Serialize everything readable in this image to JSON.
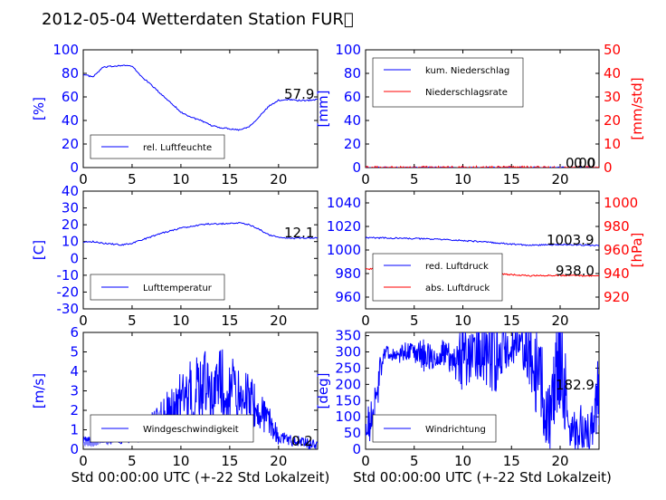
{
  "title": "2012-05-04 Wetterdaten Station FUR\u0000",
  "colors": {
    "primary": "#0000ff",
    "secondary": "#ff0000",
    "light": "#8080ff"
  },
  "chart_data": [
    {
      "type": "line",
      "xlabel": "",
      "ylabel": "[%]",
      "xlim": [
        0,
        24
      ],
      "ylim": [
        0,
        100
      ],
      "x_ticks": [
        0,
        5,
        10,
        15,
        20
      ],
      "y_ticks": [
        0,
        20,
        40,
        60,
        80,
        100
      ],
      "annotation": "57.9",
      "series": [
        {
          "name": "rel. Luftfeuchte",
          "color": "#0000ff",
          "x": [
            0,
            1,
            2,
            3,
            4,
            5,
            6,
            7,
            8,
            9,
            10,
            11,
            12,
            13,
            14,
            15,
            16,
            17,
            18,
            19,
            20,
            21,
            22,
            23,
            24
          ],
          "values": [
            79,
            77,
            85,
            86,
            87,
            86,
            77,
            70,
            62,
            55,
            47,
            43,
            40,
            36,
            34,
            33,
            32,
            35,
            43,
            52,
            57,
            58,
            57,
            57,
            58
          ]
        }
      ],
      "legend_position": "lower-left"
    },
    {
      "type": "line",
      "xlabel": "",
      "ylabel": "[mm]",
      "ylabel2": "[mm/std]",
      "xlim": [
        0,
        24
      ],
      "ylim": [
        0,
        100
      ],
      "ylim2": [
        0,
        50
      ],
      "x_ticks": [
        0,
        5,
        10,
        15,
        20
      ],
      "y_ticks": [
        0,
        20,
        40,
        60,
        80,
        100
      ],
      "y2_ticks": [
        0,
        10,
        20,
        30,
        40,
        50
      ],
      "annotation": "0.00",
      "annotation2": "0.0",
      "series": [
        {
          "name": "kum. Niederschlag",
          "color": "#0000ff",
          "axis": "left",
          "x": [
            0,
            24
          ],
          "values": [
            0,
            0
          ]
        },
        {
          "name": "Niederschlagsrate",
          "color": "#ff0000",
          "axis": "right",
          "x": [
            0,
            24
          ],
          "values": [
            0,
            0
          ]
        }
      ],
      "legend_position": "upper-left"
    },
    {
      "type": "line",
      "xlabel": "",
      "ylabel": "[C]",
      "xlim": [
        0,
        24
      ],
      "ylim": [
        -30,
        40
      ],
      "x_ticks": [
        0,
        5,
        10,
        15,
        20
      ],
      "y_ticks": [
        -30,
        -20,
        -10,
        0,
        10,
        20,
        30,
        40
      ],
      "annotation": "12.1",
      "series": [
        {
          "name": "Lufttemperatur",
          "color": "#0000ff",
          "x": [
            0,
            1,
            2,
            3,
            4,
            5,
            6,
            7,
            8,
            9,
            10,
            11,
            12,
            13,
            14,
            15,
            16,
            17,
            18,
            19,
            20,
            21,
            22,
            23,
            24
          ],
          "values": [
            10,
            10,
            9,
            8.5,
            8,
            9,
            11,
            13,
            15,
            16.5,
            18,
            19,
            20,
            20.5,
            20.5,
            21,
            21,
            20,
            17.5,
            14,
            12.5,
            12,
            12,
            12.1,
            12.1
          ]
        }
      ],
      "legend_position": "lower-left"
    },
    {
      "type": "line",
      "xlabel": "",
      "ylabel": "",
      "ylabel2": "[hPa]",
      "xlim": [
        0,
        24
      ],
      "ylim": [
        950,
        1050
      ],
      "ylim2": [
        910,
        1010
      ],
      "x_ticks": [
        0,
        5,
        10,
        15,
        20
      ],
      "y_ticks": [
        960,
        980,
        1000,
        1020,
        1040
      ],
      "y2_ticks": [
        920,
        940,
        960,
        980,
        1000
      ],
      "annotation": "1003.9",
      "annotation2": "938.0",
      "series": [
        {
          "name": "red. Luftdruck",
          "color": "#0000ff",
          "axis": "left",
          "x": [
            0,
            3,
            6,
            9,
            12,
            15,
            17,
            19,
            21,
            24
          ],
          "values": [
            1010.5,
            1010,
            1009.5,
            1008.5,
            1007,
            1005,
            1004,
            1004.5,
            1004.5,
            1003.9
          ]
        },
        {
          "name": "abs. Luftdruck",
          "color": "#ff0000",
          "axis": "right",
          "x": [
            0,
            3,
            6,
            9,
            12,
            15,
            17,
            19,
            21,
            24
          ],
          "values": [
            944,
            943.5,
            943,
            942,
            940.5,
            939,
            938.2,
            938.5,
            938.3,
            938.0
          ]
        }
      ],
      "legend_position": "lower-left"
    },
    {
      "type": "line",
      "xlabel": "Std 00:00:00 UTC (+-22 Std Lokalzeit)",
      "ylabel": "[m/s]",
      "xlim": [
        0,
        24
      ],
      "ylim": [
        0,
        6
      ],
      "x_ticks": [
        0,
        5,
        10,
        15,
        20
      ],
      "y_ticks": [
        0,
        1,
        2,
        3,
        4,
        5,
        6
      ],
      "annotation": "0.2",
      "series": [
        {
          "name": "Windgeschwindigkeit",
          "color": "#0000ff",
          "x": [
            0,
            1,
            2,
            3,
            4,
            5,
            6,
            7,
            8,
            9,
            10,
            11,
            12,
            13,
            14,
            15,
            16,
            17,
            18,
            19,
            20,
            21,
            22,
            23,
            24
          ],
          "values": [
            0.5,
            0.4,
            0.6,
            0.5,
            0.7,
            0.8,
            1.0,
            1.2,
            1.5,
            2.0,
            2.5,
            2.8,
            3.2,
            3.0,
            3.5,
            3.0,
            2.8,
            2.5,
            2.0,
            1.5,
            0.6,
            0.5,
            0.4,
            0.3,
            0.2
          ],
          "spike_amplitude": [
            0.2,
            0.2,
            0.3,
            0.3,
            0.4,
            0.5,
            0.6,
            0.7,
            1.0,
            1.4,
            1.6,
            1.8,
            2.0,
            2.0,
            1.8,
            1.8,
            1.6,
            1.4,
            1.0,
            0.8,
            0.4,
            0.3,
            0.3,
            0.3,
            0.2
          ]
        },
        {
          "name": "",
          "color": "#8080ff",
          "x": [
            0,
            1,
            2,
            3,
            4,
            5,
            6,
            7,
            8
          ],
          "values": [
            0.3,
            0.3,
            0.5,
            0.6,
            0.9,
            1.1,
            1.3,
            1.4,
            1.5
          ],
          "spike_amplitude": [
            0.1,
            0.2,
            0.2,
            0.3,
            0.3,
            0.4,
            0.4,
            0.5,
            0.5
          ]
        }
      ],
      "legend_position": "lower-left"
    },
    {
      "type": "line",
      "xlabel": "Std 00:00:00 UTC (+-22 Std Lokalzeit)",
      "ylabel": "[deg]",
      "xlim": [
        0,
        24
      ],
      "ylim": [
        0,
        360
      ],
      "x_ticks": [
        0,
        5,
        10,
        15,
        20
      ],
      "y_ticks": [
        0,
        50,
        100,
        150,
        200,
        250,
        300,
        350
      ],
      "annotation": "182.9",
      "series": [
        {
          "name": "Windrichtung",
          "color": "#0000ff",
          "x": [
            0,
            0.5,
            1,
            1.5,
            2,
            3,
            4,
            5,
            6,
            7,
            8,
            9,
            10,
            11,
            12,
            13,
            14,
            15,
            16,
            17,
            18,
            19,
            20,
            21,
            22,
            23,
            24
          ],
          "values": [
            100,
            80,
            120,
            250,
            300,
            290,
            300,
            295,
            290,
            280,
            300,
            270,
            280,
            300,
            300,
            290,
            300,
            310,
            320,
            280,
            220,
            60,
            330,
            40,
            60,
            50,
            180
          ],
          "spike_amplitude": [
            60,
            60,
            80,
            50,
            20,
            20,
            40,
            30,
            60,
            30,
            40,
            50,
            120,
            80,
            100,
            140,
            80,
            60,
            60,
            120,
            150,
            140,
            200,
            60,
            80,
            60,
            120
          ]
        }
      ],
      "legend_position": "lower-left"
    }
  ]
}
